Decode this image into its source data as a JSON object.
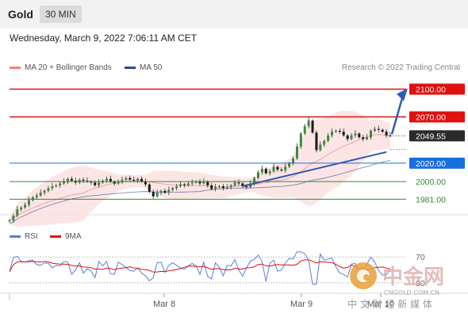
{
  "header": {
    "instrument": "Gold",
    "timeframe": "30 MIN"
  },
  "datetime": "Wednesday, March 9, 2022 7:06:11 AM CET",
  "legend": [
    {
      "label": "MA 20 + Bollinger Bands",
      "color": "#f08080"
    },
    {
      "label": "MA 50",
      "color": "#2b4c8c"
    }
  ],
  "credit": "Research © 2022 Trading Central",
  "rsi_legend": [
    {
      "label": "RSI",
      "color": "#5a7fd6"
    },
    {
      "label": "9MA",
      "color": "#e01010"
    }
  ],
  "watermark": {
    "cn_name": "中金网",
    "url": "CNGOLD.COM.CN",
    "tagline": "中 文 财 经 新 媒 体"
  },
  "chart_data": {
    "type": "candlestick",
    "price_range": [
      1965,
      2115
    ],
    "x_tick_labels": [
      "Mar 8",
      "Mar 9",
      "Mar 10"
    ],
    "levels": [
      {
        "label": "2100.00",
        "value": 2100.0,
        "kind": "resistance",
        "color": "#e01010"
      },
      {
        "label": "2070.00",
        "value": 2070.0,
        "kind": "resistance",
        "color": "#e01010"
      },
      {
        "label": "2049.55",
        "value": 2049.55,
        "kind": "last-price",
        "color": "#2a2a2a"
      },
      {
        "label": "2020.00",
        "value": 2020.0,
        "kind": "pivot",
        "color": "#1a6fe0"
      },
      {
        "label": "2000.00",
        "value": 2000.0,
        "kind": "support",
        "color": "#2e8b2e"
      },
      {
        "label": "1981.00",
        "value": 1981.0,
        "kind": "support",
        "color": "#2e8b2e"
      }
    ],
    "close_path": [
      1958,
      1963,
      1970,
      1972,
      1975,
      1980,
      1983,
      1985,
      1988,
      1990,
      1993,
      1995,
      1996,
      1998,
      2000,
      2003,
      2001,
      1999,
      2002,
      2001,
      2000,
      1999,
      1996,
      1999,
      2001,
      2003,
      2000,
      1998,
      2000,
      2002,
      2004,
      2002,
      2001,
      2003,
      2000,
      1997,
      1989,
      1984,
      1988,
      1990,
      1988,
      1991,
      1993,
      1995,
      1997,
      1996,
      1998,
      1999,
      2000,
      1998,
      2000,
      1996,
      1992,
      1994,
      1995,
      1993,
      1994,
      1996,
      1999,
      1998,
      1995,
      1994,
      1998,
      2004,
      2010,
      2014,
      2009,
      2011,
      2016,
      2013,
      2012,
      2016,
      2020,
      2025,
      2038,
      2052,
      2060,
      2066,
      2053,
      2034,
      2040,
      2044,
      2050,
      2054,
      2055,
      2054,
      2050,
      2046,
      2050,
      2052,
      2048,
      2046,
      2048,
      2055,
      2057,
      2056,
      2054,
      2050,
      2049.55
    ],
    "rsi": {
      "levels": [
        70,
        30
      ]
    },
    "forecast": {
      "target": 2100.0
    }
  }
}
